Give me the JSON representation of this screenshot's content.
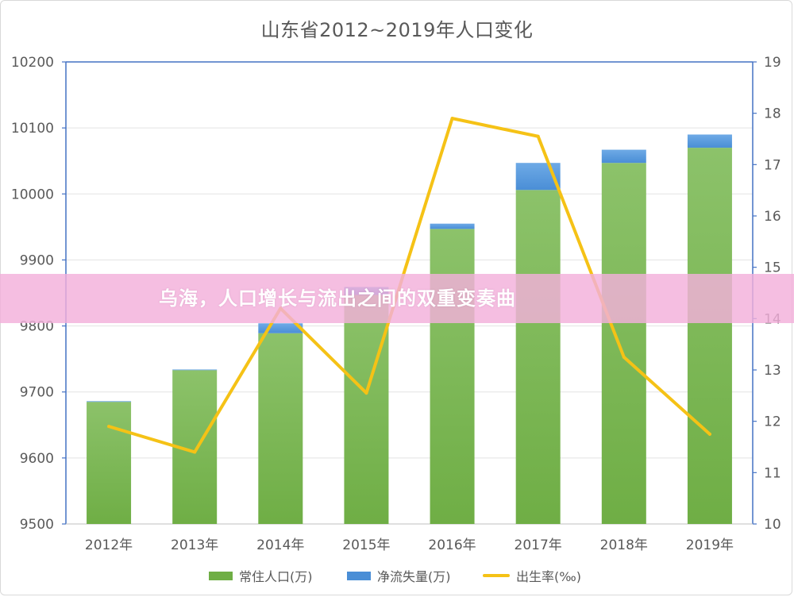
{
  "colors": {
    "green": "#6fae45",
    "green_light": "#8cc26a",
    "blue": "#4a8ed6",
    "blue_light": "#6eaae6",
    "yellow": "#f5c216",
    "axis": "#4472c4",
    "banner": "#f3b0db"
  },
  "banner": {
    "text": "乌海，人口增长与流出之间的双重变奏曲"
  },
  "chart_data": {
    "type": "bar",
    "title": "山东省2012~2019年人口变化",
    "categories": [
      "2012年",
      "2013年",
      "2014年",
      "2015年",
      "2016年",
      "2017年",
      "2018年",
      "2019年"
    ],
    "series": [
      {
        "name": "常住人口(万)",
        "kind": "stacked-bar",
        "axis": "left",
        "values": [
          9685,
          9733,
          9789,
          9847,
          9947,
          10006,
          10047,
          10070
        ]
      },
      {
        "name": "净流失量(万)",
        "kind": "stacked-bar",
        "axis": "left",
        "values": [
          1,
          1,
          15,
          12,
          8,
          41,
          20,
          20
        ]
      },
      {
        "name": "出生率(‰)",
        "kind": "line",
        "axis": "right",
        "values": [
          11.9,
          11.4,
          14.2,
          12.55,
          17.9,
          17.55,
          13.25,
          11.75
        ]
      }
    ],
    "y_left": {
      "min": 9500,
      "max": 10200,
      "ticks": [
        "9500",
        "9600",
        "9700",
        "9800",
        "9900",
        "10000",
        "10100",
        "10200"
      ]
    },
    "y_right": {
      "min": 10,
      "max": 19,
      "ticks": [
        "10",
        "11",
        "12",
        "13",
        "14",
        "15",
        "16",
        "17",
        "18",
        "19"
      ]
    },
    "grid": true,
    "legend_position": "bottom"
  }
}
